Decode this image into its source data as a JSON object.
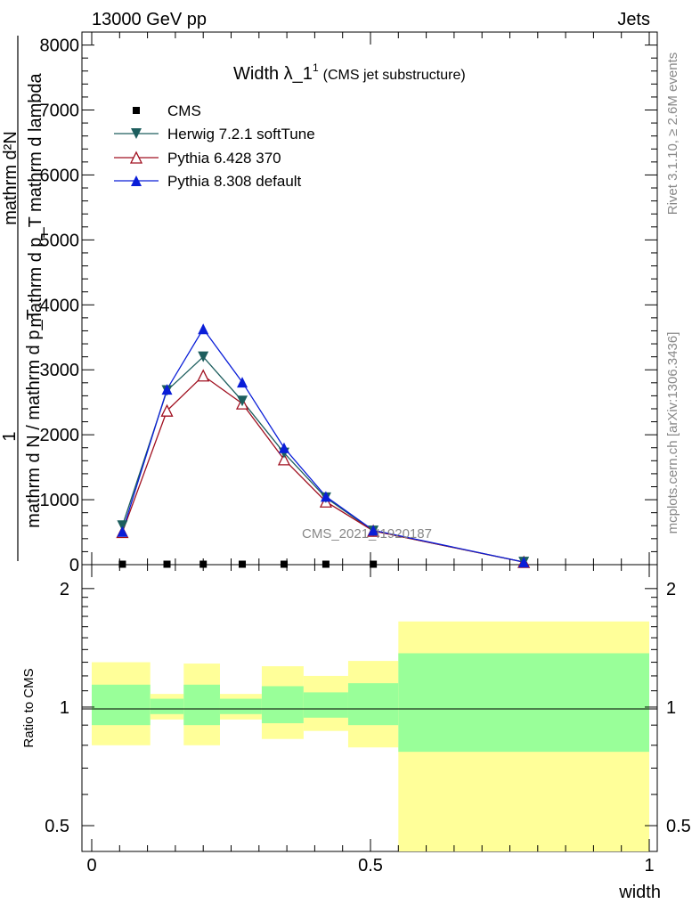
{
  "header": {
    "left": "13000 GeV pp",
    "right": "Jets"
  },
  "title": {
    "main": "Width λ_1",
    "sup": "1",
    "sub": "(CMS jet substructure)"
  },
  "ylabel_top": {
    "frac_top": "mathrm d²N",
    "frac_top_mid": "mathrm d p_T mathrm d lambda",
    "frac_bottom": "mathrm d N / mathrm d p_T",
    "one": "1"
  },
  "side_labels": {
    "rivet": "Rivet 3.1.10, ≥ 2.6M events",
    "mcplots": "mcplots.cern.ch [arXiv:1306.3436]"
  },
  "watermark": "CMS_2021_I1920187",
  "ratio_ylabel": "Ratio to CMS",
  "xlabel": "width",
  "colors": {
    "herwig": "#1d5e5e",
    "pythia6": "#a01020",
    "pythia8": "#0a1ed8",
    "data": "#000000",
    "band_yellow": "#ffff99",
    "band_green": "#99ff99"
  },
  "chart_data": {
    "type": "line",
    "xlim": [
      0,
      1
    ],
    "ylim": [
      0,
      8200
    ],
    "xticks": [
      "0",
      "0.5",
      "1"
    ],
    "yticks": [
      "0",
      "1000",
      "2000",
      "3000",
      "4000",
      "5000",
      "6000",
      "7000",
      "8000"
    ],
    "legend_position": "top-left",
    "series": [
      {
        "name": "CMS",
        "marker": "square",
        "x": [
          0.055,
          0.135,
          0.2,
          0.27,
          0.345,
          0.42,
          0.505
        ],
        "y": [
          0,
          0,
          0,
          0,
          0,
          0,
          0
        ]
      },
      {
        "name": "Herwig 7.2.1 softTune",
        "marker": "triangle-down",
        "x": [
          0.055,
          0.135,
          0.2,
          0.27,
          0.345,
          0.42,
          0.505,
          0.775
        ],
        "y": [
          600,
          2680,
          3200,
          2520,
          1720,
          1030,
          520,
          40
        ]
      },
      {
        "name": "Pythia 6.428 370",
        "marker": "triangle-up-open",
        "x": [
          0.055,
          0.135,
          0.2,
          0.27,
          0.345,
          0.42,
          0.505,
          0.775
        ],
        "y": [
          500,
          2370,
          2910,
          2480,
          1620,
          970,
          520,
          40
        ]
      },
      {
        "name": "Pythia 8.308 default",
        "marker": "triangle-up",
        "x": [
          0.055,
          0.135,
          0.2,
          0.27,
          0.345,
          0.42,
          0.505,
          0.775
        ],
        "y": [
          510,
          2700,
          3630,
          2810,
          1800,
          1050,
          530,
          40
        ]
      }
    ],
    "ratio": {
      "ylabel": "Ratio to CMS",
      "ylim": [
        0.43,
        2.3
      ],
      "yticks": [
        "0.5",
        "1",
        "2"
      ],
      "reference": 1,
      "bins": [
        {
          "x0": 0.0,
          "x1": 0.105,
          "y_lo": 0.8,
          "y_hi": 1.3,
          "g_lo": 0.9,
          "g_hi": 1.14
        },
        {
          "x0": 0.105,
          "x1": 0.165,
          "y_lo": 0.93,
          "y_hi": 1.08,
          "g_lo": 0.96,
          "g_hi": 1.05
        },
        {
          "x0": 0.165,
          "x1": 0.23,
          "y_lo": 0.8,
          "y_hi": 1.29,
          "g_lo": 0.9,
          "g_hi": 1.14
        },
        {
          "x0": 0.23,
          "x1": 0.305,
          "y_lo": 0.93,
          "y_hi": 1.08,
          "g_lo": 0.96,
          "g_hi": 1.05
        },
        {
          "x0": 0.305,
          "x1": 0.38,
          "y_lo": 0.83,
          "y_hi": 1.27,
          "g_lo": 0.91,
          "g_hi": 1.13
        },
        {
          "x0": 0.38,
          "x1": 0.46,
          "y_lo": 0.87,
          "y_hi": 1.2,
          "g_lo": 0.94,
          "g_hi": 1.09
        },
        {
          "x0": 0.46,
          "x1": 0.55,
          "y_lo": 0.79,
          "y_hi": 1.31,
          "g_lo": 0.9,
          "g_hi": 1.15
        },
        {
          "x0": 0.55,
          "x1": 1.0,
          "y_lo": 0.43,
          "y_hi": 1.65,
          "g_lo": 0.77,
          "g_hi": 1.37
        }
      ]
    }
  }
}
